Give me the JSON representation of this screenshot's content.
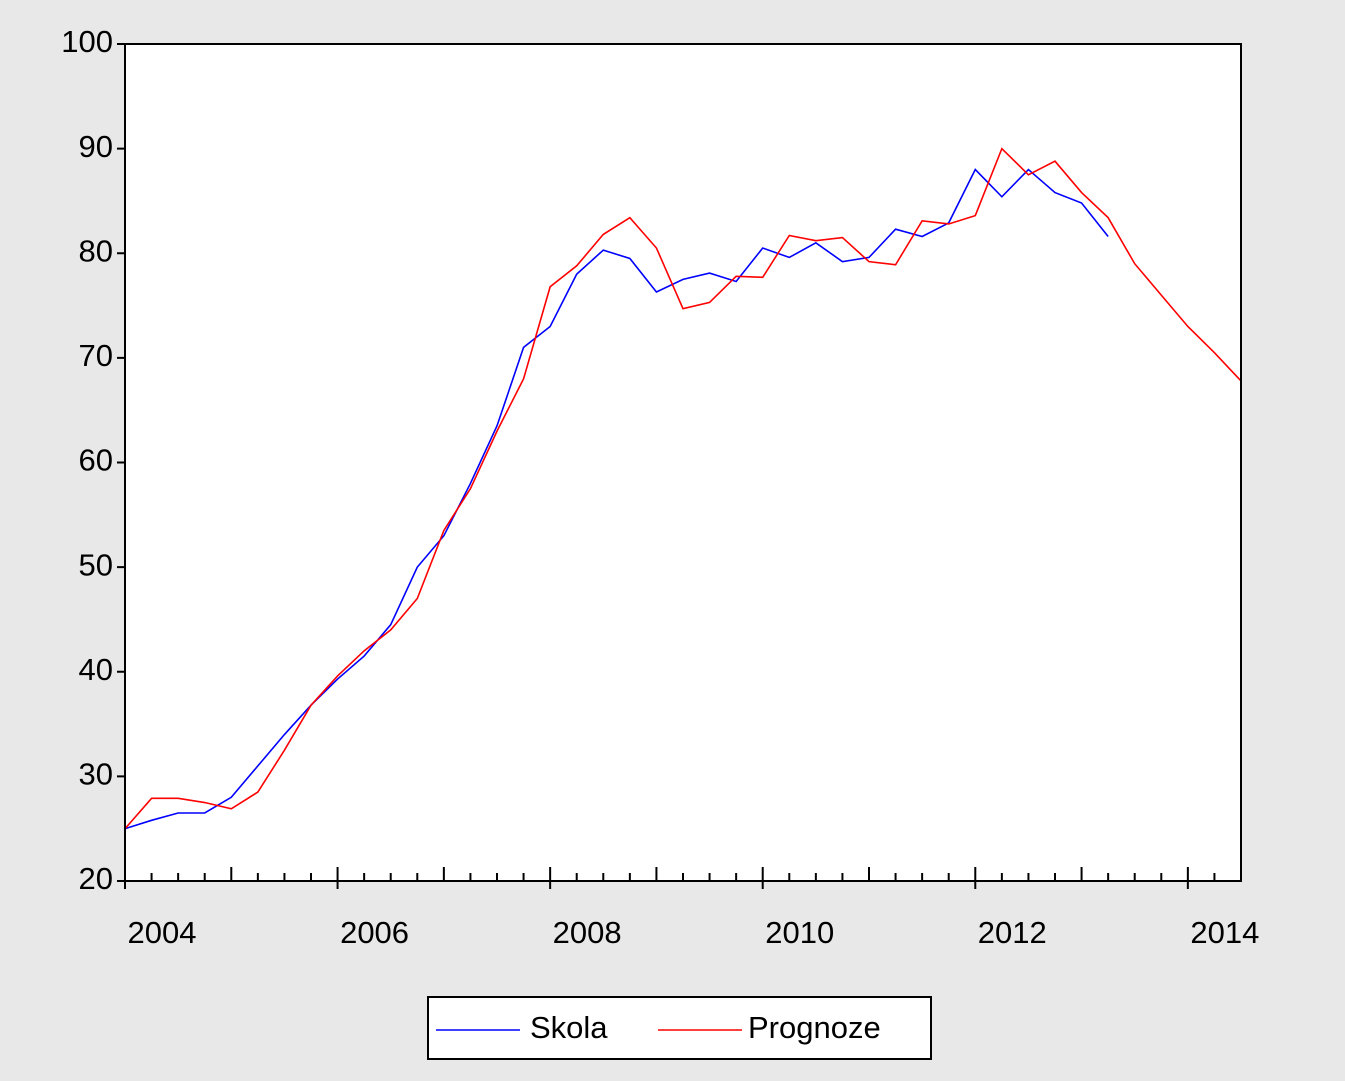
{
  "chart_data": {
    "type": "line",
    "x": [
      2004,
      2004.25,
      2004.5,
      2004.75,
      2005,
      2005.25,
      2005.5,
      2005.75,
      2006,
      2006.25,
      2006.5,
      2006.75,
      2007,
      2007.25,
      2007.5,
      2007.75,
      2008,
      2008.25,
      2008.5,
      2008.75,
      2009,
      2009.25,
      2009.5,
      2009.75,
      2010,
      2010.25,
      2010.5,
      2010.75,
      2011,
      2011.25,
      2011.5,
      2011.75,
      2012,
      2012.25,
      2012.5,
      2012.75,
      2013,
      2013.25,
      2013.5,
      2013.75,
      2014,
      2014.25,
      2014.5
    ],
    "series": [
      {
        "name": "Skola",
        "color": "#0000ff",
        "values": [
          25.0,
          25.8,
          26.5,
          26.5,
          28.0,
          31.0,
          34.0,
          36.8,
          39.3,
          41.5,
          44.5,
          50.0,
          53.0,
          58.0,
          63.5,
          71.0,
          73.0,
          78.0,
          80.3,
          79.5,
          76.3,
          77.5,
          78.1,
          77.3,
          80.5,
          79.6,
          81.0,
          79.2,
          79.6,
          82.3,
          81.6,
          82.9,
          88.0,
          85.4,
          88.0,
          85.8,
          84.8,
          81.6,
          null,
          null,
          null,
          null,
          null
        ]
      },
      {
        "name": "Prognoze",
        "color": "#ff0000",
        "values": [
          25.0,
          27.9,
          27.9,
          27.5,
          26.9,
          28.5,
          32.5,
          36.8,
          39.6,
          42.0,
          44.0,
          47.0,
          53.5,
          57.5,
          63.0,
          68.0,
          76.8,
          78.8,
          81.8,
          83.4,
          80.5,
          74.7,
          75.3,
          77.8,
          77.7,
          81.7,
          81.2,
          81.5,
          79.2,
          78.9,
          83.1,
          82.8,
          83.6,
          90.0,
          87.5,
          88.8,
          85.8,
          83.4,
          79.0,
          76.0,
          73.0,
          70.5,
          67.8
        ]
      }
    ],
    "xlim": [
      2004,
      2014.5
    ],
    "xticks": [
      2004,
      2006,
      2008,
      2010,
      2012,
      2014
    ],
    "ylim": [
      20,
      100
    ],
    "yticks": [
      20,
      30,
      40,
      50,
      60,
      70,
      80,
      90,
      100
    ],
    "legend": "bottom"
  }
}
